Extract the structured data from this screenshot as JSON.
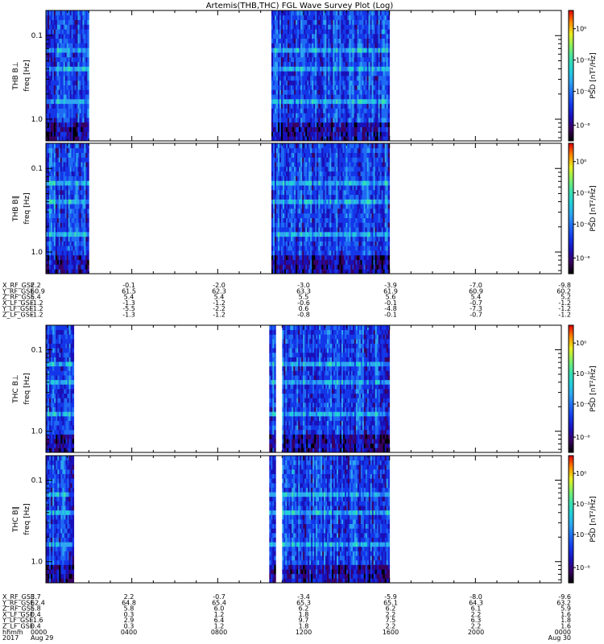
{
  "title": "Artemis(THB,THC) FGL Wave Survey Plot (Log)",
  "colors": {
    "cmap": [
      "#000000",
      "#3a0060",
      "#1a10b8",
      "#1436e8",
      "#1f6af4",
      "#2ea6f0",
      "#22d0d8",
      "#3ee2a8",
      "#88ee60",
      "#e8ee20",
      "#ff8a00",
      "#e00000"
    ],
    "frame": "#000000"
  },
  "panels": [
    {
      "id": "thb-bperp",
      "ylabel": "THB B⊥",
      "ylabel2": "freq [Hz]",
      "cbar_label": "PSD [nT²/Hz]",
      "yticks": [
        "1.0",
        "0.1"
      ],
      "cticks": [
        "10⁰",
        "10⁻²",
        "10⁻⁴",
        "10⁻⁶"
      ],
      "seed": 11,
      "gap": false
    },
    {
      "id": "thb-bpar",
      "ylabel": "THB B∥",
      "ylabel2": "freq [Hz]",
      "cbar_label": "PSD [nT²/Hz]",
      "yticks": [
        "1.0",
        "0.1"
      ],
      "cticks": [
        "10⁰",
        "10⁻²",
        "10⁻⁴",
        "10⁻⁶"
      ],
      "seed": 23,
      "gap": false
    },
    {
      "id": "thc-bperp",
      "ylabel": "THC B⊥",
      "ylabel2": "freq [Hz]",
      "cbar_label": "PSD [nT²/Hz]",
      "yticks": [
        "1.0",
        "0.1"
      ],
      "cticks": [
        "10⁰",
        "10⁻²",
        "10⁻⁴",
        "10⁻⁶"
      ],
      "seed": 37,
      "gap": true
    },
    {
      "id": "thc-bpar",
      "ylabel": "THC B∥",
      "ylabel2": "freq [Hz]",
      "cbar_label": "PSD [nT²/Hz]",
      "yticks": [
        "1.0",
        "0.1"
      ],
      "cticks": [
        "10⁰",
        "10⁻²",
        "10⁻⁴",
        "10⁻⁶"
      ],
      "seed": 53,
      "gap": true
    }
  ],
  "ephem_thb": {
    "labels": [
      "X_RF_GSE",
      "Y_RF_GSE",
      "Z_RF_GSE",
      "X_LF_GSE",
      "Y_LF_GSE",
      "Z_LF_GSE"
    ],
    "columns": [
      [
        "2.2",
        "60.9",
        "5.4",
        "-1.2",
        "-1.2",
        "-1.2"
      ],
      [
        "-0.1",
        "61.5",
        "5.4",
        "-1.3",
        "-5.5",
        "-1.3"
      ],
      [
        "-2.0",
        "62.3",
        "5.4",
        "-1.2",
        "-2.2",
        "-1.2"
      ],
      [
        "-3.0",
        "63.3",
        "5.5",
        "-0.6",
        "0.6",
        "-0.8"
      ],
      [
        "-3.9",
        "61.9",
        "5.6",
        "-0.1",
        "-4.8",
        "-0.1"
      ],
      [
        "-7.0",
        "60.9",
        "5.4",
        "-0.7",
        "-7.3",
        "-0.7"
      ],
      [
        "-9.8",
        "60.2",
        "5.2",
        "-1.2",
        "-1.2",
        "-1.2"
      ]
    ]
  },
  "ephem_thc": {
    "labels": [
      "X_RF_GSE",
      "Y_RF_GSE",
      "Z_RF_GSE",
      "X_LF_GSE",
      "Y_LF_GSE",
      "Z_LF_GSE",
      "hhmm",
      "2017"
    ],
    "columns": [
      [
        "3.7",
        "62.4",
        "5.8",
        "0.4",
        "-1.6",
        "0.4",
        "0000",
        "Aug 29"
      ],
      [
        "2.2",
        "64.8",
        "5.8",
        "0.3",
        "2.9",
        "0.3",
        "0400",
        ""
      ],
      [
        "-0.7",
        "65.4",
        "6.0",
        "1.2",
        "6.4",
        "1.2",
        "0800",
        ""
      ],
      [
        "-3.4",
        "65.3",
        "6.2",
        "1.8",
        "9.7",
        "1.8",
        "1200",
        ""
      ],
      [
        "-5.9",
        "65.1",
        "6.2",
        "2.2",
        "7.5",
        "2.2",
        "1600",
        ""
      ],
      [
        "-8.0",
        "64.3",
        "6.1",
        "2.2",
        "6.3",
        "2.2",
        "2000",
        ""
      ],
      [
        "-9.6",
        "63.2",
        "5.9",
        "1.6",
        "1.8",
        "1.6",
        "0000",
        "Aug 30"
      ]
    ]
  },
  "chart_data": {
    "type": "heatmap",
    "title": "Artemis(THB,THC) FGL Wave Survey Plot (Log)",
    "xlabel": "hhmm",
    "x_ticks": [
      "0000",
      "0400",
      "0800",
      "1200",
      "1600",
      "2000",
      "0000"
    ],
    "x_range_hours": [
      0,
      24
    ],
    "y_scale": "log",
    "y_range_hz": [
      0.055,
      2.0
    ],
    "y_ticks_hz": [
      0.1,
      1.0
    ],
    "color_scale": "log",
    "color_range": [
      1e-07,
      10
    ],
    "data_intervals_hours": {
      "THB": [
        [
          0.0,
          2.0
        ],
        [
          10.5,
          16.0
        ]
      ],
      "THC": [
        [
          0.0,
          1.3
        ],
        [
          10.4,
          10.7
        ],
        [
          11.0,
          16.0
        ]
      ]
    },
    "series": [
      {
        "name": "THB B⊥",
        "probe": "THB"
      },
      {
        "name": "THB B∥",
        "probe": "THB"
      },
      {
        "name": "THC B⊥",
        "probe": "THC"
      },
      {
        "name": "THC B∥",
        "probe": "THC"
      }
    ]
  }
}
